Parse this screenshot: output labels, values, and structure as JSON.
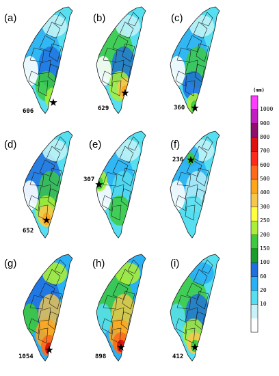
{
  "panels": [
    {
      "id": "a",
      "label": "(a)",
      "value": "606"
    },
    {
      "id": "b",
      "label": "(b)",
      "value": "629"
    },
    {
      "id": "c",
      "label": "(c)",
      "value": "360"
    },
    {
      "id": "d",
      "label": "(d)",
      "value": "652"
    },
    {
      "id": "e",
      "label": "(e)",
      "value": "307"
    },
    {
      "id": "f",
      "label": "(f)",
      "value": "236"
    },
    {
      "id": "g",
      "label": "(g)",
      "value": "1054"
    },
    {
      "id": "h",
      "label": "(h)",
      "value": "898"
    },
    {
      "id": "i",
      "label": "(i)",
      "value": "412"
    }
  ],
  "colorbar": {
    "unit": "(mm)",
    "ticks": [
      "1000",
      "900",
      "800",
      "700",
      "600",
      "500",
      "400",
      "300",
      "250",
      "200",
      "150",
      "100",
      "60",
      "20",
      "10"
    ],
    "colors": [
      "#ff3cff",
      "#c21fc2",
      "#8f0f6f",
      "#e01010",
      "#ff2a1a",
      "#ff6a1a",
      "#ffa51a",
      "#f6c84a",
      "#ffff40",
      "#a8ee3a",
      "#3dcb3d",
      "#1a9e2a",
      "#1f6fe0",
      "#2ab0f5",
      "#56dff0",
      "#c8f2fa",
      "#ffffff"
    ]
  }
}
